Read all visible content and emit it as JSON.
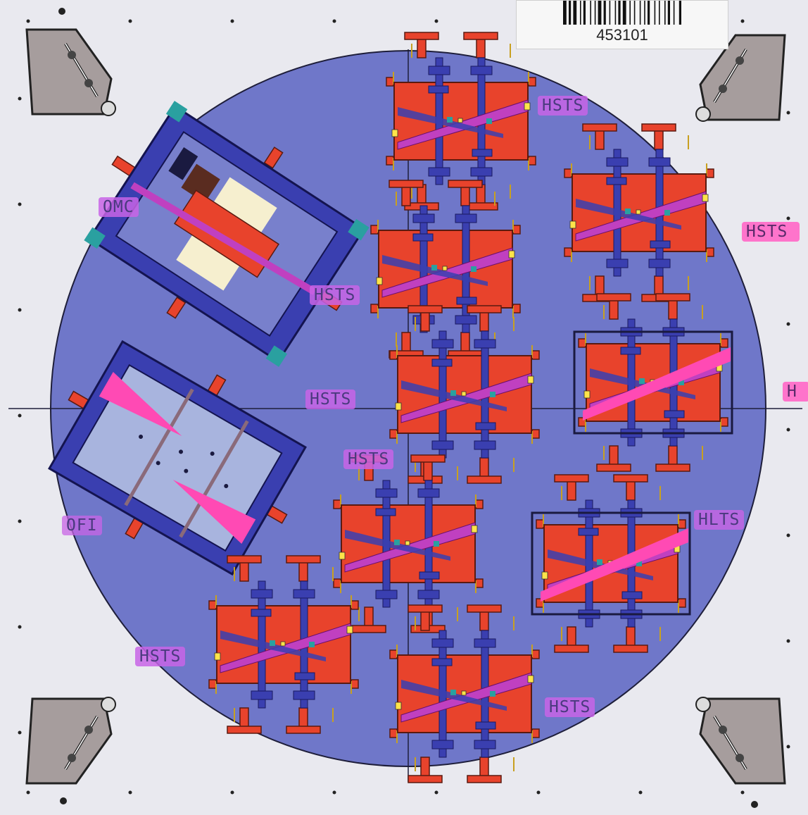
{
  "barcode": {
    "number": "453101"
  },
  "labels": {
    "omc": "OMC",
    "ofi": "OFI",
    "hsts_1": "HSTS",
    "hsts_2": "HSTS",
    "hsts_3": "HSTS",
    "hsts_4": "HSTS",
    "hsts_5": "HSTS",
    "hsts_6": "HSTS",
    "hsts_right_edge": "HSTS",
    "h_right_edge": "H",
    "hlts": "HLTS"
  },
  "colors": {
    "background": "#e9e9ef",
    "table": "#6f77c9",
    "platform_red": "#e8432c",
    "frame_blue": "#3a3fb0",
    "beam_magenta": "#c040c0",
    "corner_gray": "#a69d9d",
    "label_purple": "#c864e6",
    "label_pink": "#ff6ec8"
  }
}
